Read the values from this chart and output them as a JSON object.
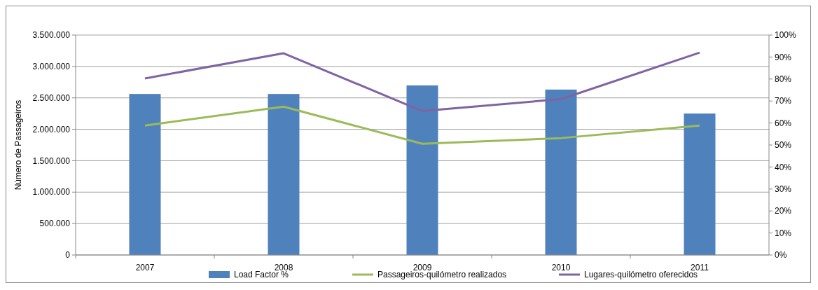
{
  "chart_data": {
    "type": "bar",
    "ylabel": "Número de Passageiros",
    "categories": [
      "2007",
      "2008",
      "2009",
      "2010",
      "2011"
    ],
    "series": [
      {
        "name": "Load Factor %",
        "axis": "y2",
        "color": "#4f81bd",
        "values": [
          73.2,
          73.2,
          77.1,
          75.2,
          64.3
        ]
      },
      {
        "name": "Passageiros-quilómetro realizados",
        "type": "line",
        "axis": "y",
        "color": "#9bbb59",
        "values": [
          2060000,
          2360000,
          1770000,
          1860000,
          2060000
        ]
      },
      {
        "name": "Lugares-quilómetro oferecidos",
        "type": "line",
        "axis": "y",
        "color": "#8064a2",
        "values": [
          2810000,
          3210000,
          2290000,
          2480000,
          3220000
        ]
      }
    ],
    "ylim": [
      0,
      3500000
    ],
    "yticks": [
      0,
      {
        "value": 500000,
        "label": "500.000"
      },
      {
        "value": 1000000,
        "label": "1.000.000"
      },
      {
        "value": 1500000,
        "label": "1.500.000"
      },
      {
        "value": 2000000,
        "label": "2.000.000"
      },
      {
        "value": 2500000,
        "label": "2.500.000"
      },
      {
        "value": 3000000,
        "label": "3.000.000"
      },
      {
        "value": 3500000,
        "label": "3.500.000"
      }
    ],
    "y2lim": [
      0,
      100
    ],
    "y2ticks": [
      {
        "value": 0,
        "label": "0%"
      },
      {
        "value": 10,
        "label": "10%"
      },
      {
        "value": 20,
        "label": "20%"
      },
      {
        "value": 30,
        "label": "30%"
      },
      {
        "value": 40,
        "label": "40%"
      },
      {
        "value": 50,
        "label": "50%"
      },
      {
        "value": 60,
        "label": "60%"
      },
      {
        "value": 70,
        "label": "70%"
      },
      {
        "value": 80,
        "label": "80%"
      },
      {
        "value": 90,
        "label": "90%"
      },
      {
        "value": 100,
        "label": "100%"
      }
    ],
    "grid": "y",
    "legend": "bottom",
    "marker": "none",
    "line_style": "solid"
  }
}
